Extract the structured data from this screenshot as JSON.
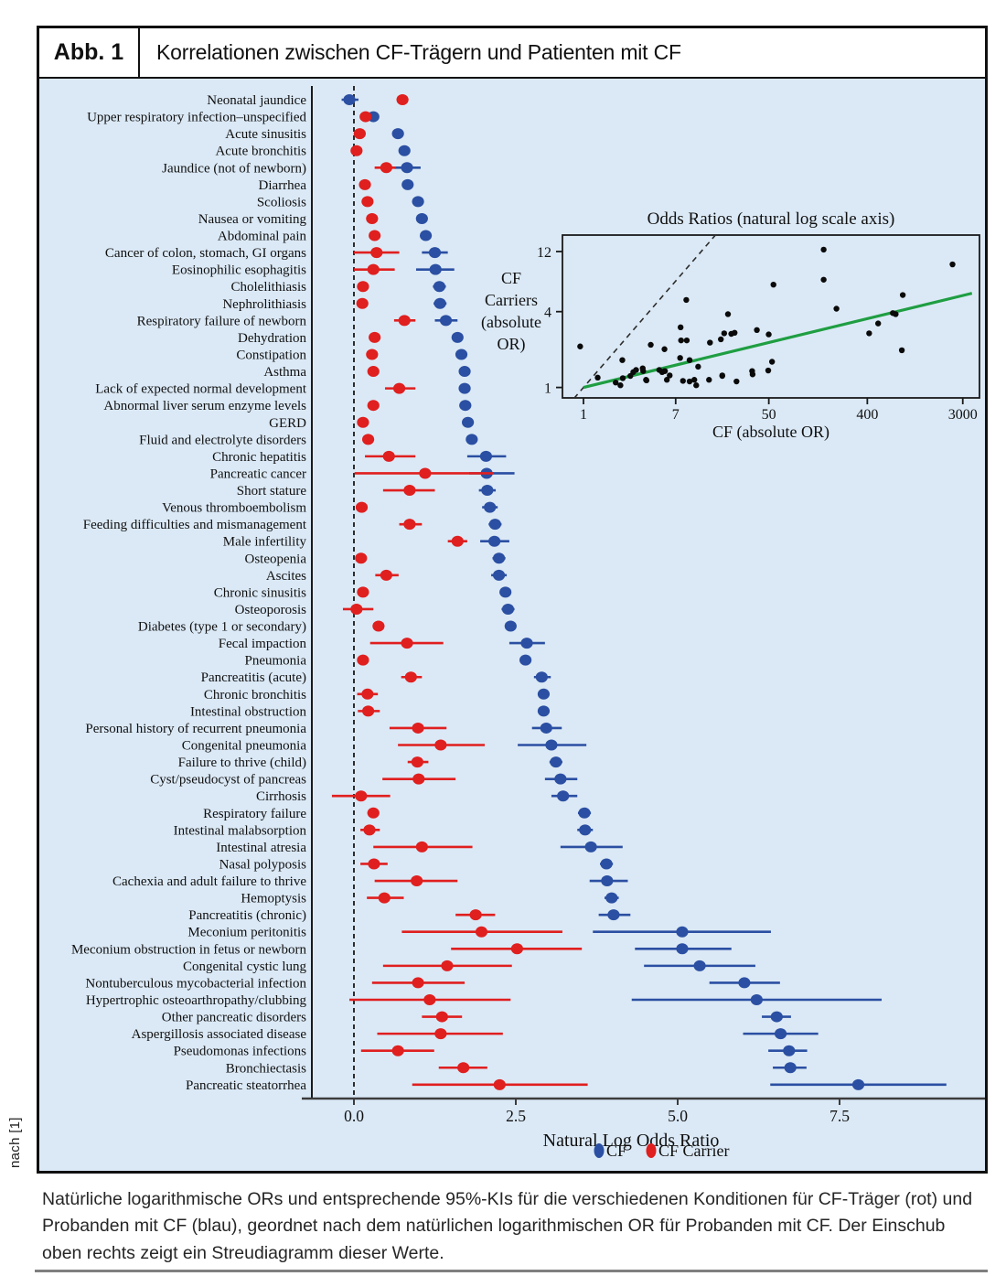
{
  "figure": {
    "label": "Abb. 1",
    "title": "Korrelationen zwischen CF-Trägern und Patienten mit CF",
    "source_note": "nach [1]",
    "caption": "Natürliche logarithmische ORs und entsprechende 95%-KIs für die verschiedenen Konditionen für CF-Träger (rot) und Probanden mit CF (blau), geordnet nach dem natürlichen logarithmischen OR für Probanden mit CF. Der Einschub oben rechts zeigt ein Streudiagramm dieser Werte."
  },
  "colors": {
    "cf": "#2b4fa2",
    "carrier": "#e01f1f",
    "fit_line": "#1f9e42",
    "axis": "#333333",
    "background": "#dbe9f6"
  },
  "chart_data": {
    "type": "forest",
    "xlabel": "Natural Log Odds Ratio",
    "x_ticks": [
      {
        "v": 0,
        "label": "0.0"
      },
      {
        "v": 2.5,
        "label": "2.5"
      },
      {
        "v": 5,
        "label": "5.0"
      },
      {
        "v": 7.5,
        "label": "7.5"
      }
    ],
    "xlim": [
      -0.7,
      9.8
    ],
    "zero_line": 0,
    "legend": [
      {
        "series": "cf",
        "label": "CF"
      },
      {
        "series": "carrier",
        "label": "CF Carrier"
      }
    ],
    "rows": [
      {
        "label": "Neonatal jaundice",
        "cf": -0.07,
        "cf_ci": [
          -0.19,
          0.07
        ],
        "carrier": 0.75,
        "carrier_ci": [
          0.67,
          0.83
        ]
      },
      {
        "label": "Upper respiratory infection–unspecified",
        "cf": 0.3,
        "cf_ci": [
          0.21,
          0.38
        ],
        "carrier": 0.18,
        "carrier_ci": [
          0.12,
          0.24
        ]
      },
      {
        "label": "Acute sinusitis",
        "cf": 0.68,
        "cf_ci": [
          0.6,
          0.76
        ],
        "carrier": 0.09,
        "carrier_ci": [
          0.04,
          0.14
        ]
      },
      {
        "label": "Acute bronchitis",
        "cf": 0.78,
        "cf_ci": [
          0.71,
          0.85
        ],
        "carrier": 0.04,
        "carrier_ci": [
          0.0,
          0.09
        ]
      },
      {
        "label": "Jaundice (not of newborn)",
        "cf": 0.82,
        "cf_ci": [
          0.63,
          1.03
        ],
        "carrier": 0.5,
        "carrier_ci": [
          0.32,
          0.65
        ]
      },
      {
        "label": "Diarrhea",
        "cf": 0.83,
        "cf_ci": [
          0.76,
          0.9
        ],
        "carrier": 0.17,
        "carrier_ci": [
          0.12,
          0.22
        ]
      },
      {
        "label": "Scoliosis",
        "cf": 0.99,
        "cf_ci": [
          0.91,
          1.07
        ],
        "carrier": 0.21,
        "carrier_ci": [
          0.14,
          0.28
        ]
      },
      {
        "label": "Nausea or vomiting",
        "cf": 1.05,
        "cf_ci": [
          0.98,
          1.12
        ],
        "carrier": 0.28,
        "carrier_ci": [
          0.23,
          0.33
        ]
      },
      {
        "label": "Abdominal pain",
        "cf": 1.11,
        "cf_ci": [
          1.04,
          1.18
        ],
        "carrier": 0.32,
        "carrier_ci": [
          0.27,
          0.37
        ]
      },
      {
        "label": "Cancer of colon, stomach, GI organs",
        "cf": 1.25,
        "cf_ci": [
          1.05,
          1.45
        ],
        "carrier": 0.35,
        "carrier_ci": [
          0.0,
          0.7
        ]
      },
      {
        "label": "Eosinophilic esophagitis",
        "cf": 1.26,
        "cf_ci": [
          0.96,
          1.55
        ],
        "carrier": 0.3,
        "carrier_ci": [
          0.0,
          0.63
        ]
      },
      {
        "label": "Cholelithiasis",
        "cf": 1.32,
        "cf_ci": [
          1.22,
          1.42
        ],
        "carrier": 0.14,
        "carrier_ci": [
          0.08,
          0.2
        ]
      },
      {
        "label": "Nephrolithiasis",
        "cf": 1.33,
        "cf_ci": [
          1.23,
          1.43
        ],
        "carrier": 0.13,
        "carrier_ci": [
          0.07,
          0.19
        ]
      },
      {
        "label": "Respiratory failure of newborn",
        "cf": 1.42,
        "cf_ci": [
          1.25,
          1.6
        ],
        "carrier": 0.78,
        "carrier_ci": [
          0.62,
          0.95
        ]
      },
      {
        "label": "Dehydration",
        "cf": 1.6,
        "cf_ci": [
          1.52,
          1.68
        ],
        "carrier": 0.32,
        "carrier_ci": [
          0.26,
          0.38
        ]
      },
      {
        "label": "Constipation",
        "cf": 1.66,
        "cf_ci": [
          1.59,
          1.73
        ],
        "carrier": 0.28,
        "carrier_ci": [
          0.23,
          0.33
        ]
      },
      {
        "label": "Asthma",
        "cf": 1.71,
        "cf_ci": [
          1.64,
          1.78
        ],
        "carrier": 0.3,
        "carrier_ci": [
          0.25,
          0.35
        ]
      },
      {
        "label": "Lack of expected normal development",
        "cf": 1.71,
        "cf_ci": [
          1.62,
          1.8
        ],
        "carrier": 0.7,
        "carrier_ci": [
          0.48,
          0.95
        ]
      },
      {
        "label": "Abnormal liver serum enzyme levels",
        "cf": 1.72,
        "cf_ci": [
          1.63,
          1.81
        ],
        "carrier": 0.3,
        "carrier_ci": [
          0.22,
          0.38
        ]
      },
      {
        "label": "GERD",
        "cf": 1.76,
        "cf_ci": [
          1.69,
          1.83
        ],
        "carrier": 0.14,
        "carrier_ci": [
          0.09,
          0.19
        ]
      },
      {
        "label": "Fluid and electrolyte disorders",
        "cf": 1.82,
        "cf_ci": [
          1.74,
          1.9
        ],
        "carrier": 0.22,
        "carrier_ci": [
          0.16,
          0.28
        ]
      },
      {
        "label": "Chronic hepatitis",
        "cf": 2.04,
        "cf_ci": [
          1.75,
          2.35
        ],
        "carrier": 0.54,
        "carrier_ci": [
          0.17,
          0.95
        ]
      },
      {
        "label": "Pancreatic cancer",
        "cf": 2.05,
        "cf_ci": [
          1.78,
          2.48
        ],
        "carrier": 1.1,
        "carrier_ci": [
          0.01,
          2.16
        ]
      },
      {
        "label": "Short stature",
        "cf": 2.06,
        "cf_ci": [
          1.93,
          2.19
        ],
        "carrier": 0.86,
        "carrier_ci": [
          0.45,
          1.25
        ]
      },
      {
        "label": "Venous thromboembolism",
        "cf": 2.1,
        "cf_ci": [
          1.98,
          2.22
        ],
        "carrier": 0.12,
        "carrier_ci": [
          0.05,
          0.19
        ]
      },
      {
        "label": "Feeding difficulties and mismanagement",
        "cf": 2.18,
        "cf_ci": [
          2.08,
          2.28
        ],
        "carrier": 0.86,
        "carrier_ci": [
          0.7,
          1.05
        ]
      },
      {
        "label": "Male infertility",
        "cf": 2.17,
        "cf_ci": [
          1.95,
          2.4
        ],
        "carrier": 1.6,
        "carrier_ci": [
          1.45,
          1.75
        ]
      },
      {
        "label": "Osteopenia",
        "cf": 2.24,
        "cf_ci": [
          2.14,
          2.34
        ],
        "carrier": 0.11,
        "carrier_ci": [
          0.04,
          0.18
        ]
      },
      {
        "label": "Ascites",
        "cf": 2.24,
        "cf_ci": [
          2.12,
          2.36
        ],
        "carrier": 0.5,
        "carrier_ci": [
          0.33,
          0.69
        ]
      },
      {
        "label": "Chronic sinusitis",
        "cf": 2.34,
        "cf_ci": [
          2.26,
          2.42
        ],
        "carrier": 0.14,
        "carrier_ci": [
          0.08,
          0.2
        ]
      },
      {
        "label": "Osteoporosis",
        "cf": 2.38,
        "cf_ci": [
          2.28,
          2.48
        ],
        "carrier": 0.04,
        "carrier_ci": [
          -0.17,
          0.3
        ]
      },
      {
        "label": "Diabetes (type 1 or secondary)",
        "cf": 2.42,
        "cf_ci": [
          2.34,
          2.5
        ],
        "carrier": 0.38,
        "carrier_ci": [
          0.31,
          0.45
        ]
      },
      {
        "label": "Fecal impaction",
        "cf": 2.67,
        "cf_ci": [
          2.4,
          2.95
        ],
        "carrier": 0.82,
        "carrier_ci": [
          0.25,
          1.38
        ]
      },
      {
        "label": "Pneumonia",
        "cf": 2.65,
        "cf_ci": [
          2.57,
          2.73
        ],
        "carrier": 0.14,
        "carrier_ci": [
          0.08,
          0.2
        ]
      },
      {
        "label": "Pancreatitis (acute)",
        "cf": 2.9,
        "cf_ci": [
          2.78,
          3.04
        ],
        "carrier": 0.88,
        "carrier_ci": [
          0.73,
          1.05
        ]
      },
      {
        "label": "Chronic bronchitis",
        "cf": 2.93,
        "cf_ci": [
          2.85,
          3.01
        ],
        "carrier": 0.21,
        "carrier_ci": [
          0.05,
          0.37
        ]
      },
      {
        "label": "Intestinal obstruction",
        "cf": 2.93,
        "cf_ci": [
          2.84,
          3.02
        ],
        "carrier": 0.22,
        "carrier_ci": [
          0.06,
          0.4
        ]
      },
      {
        "label": "Personal history of recurrent pneumonia",
        "cf": 2.97,
        "cf_ci": [
          2.75,
          3.21
        ],
        "carrier": 0.99,
        "carrier_ci": [
          0.55,
          1.43
        ]
      },
      {
        "label": "Congenital pneumonia",
        "cf": 3.05,
        "cf_ci": [
          2.53,
          3.59
        ],
        "carrier": 1.34,
        "carrier_ci": [
          0.68,
          2.02
        ]
      },
      {
        "label": "Failure to thrive (child)",
        "cf": 3.12,
        "cf_ci": [
          3.02,
          3.22
        ],
        "carrier": 0.98,
        "carrier_ci": [
          0.83,
          1.15
        ]
      },
      {
        "label": "Cyst/pseudocyst of pancreas",
        "cf": 3.19,
        "cf_ci": [
          2.95,
          3.45
        ],
        "carrier": 1.0,
        "carrier_ci": [
          0.44,
          1.57
        ]
      },
      {
        "label": "Cirrhosis",
        "cf": 3.23,
        "cf_ci": [
          3.05,
          3.45
        ],
        "carrier": 0.11,
        "carrier_ci": [
          -0.34,
          0.56
        ]
      },
      {
        "label": "Respiratory failure",
        "cf": 3.56,
        "cf_ci": [
          3.46,
          3.66
        ],
        "carrier": 0.3,
        "carrier_ci": [
          0.21,
          0.39
        ]
      },
      {
        "label": "Intestinal malabsorption",
        "cf": 3.57,
        "cf_ci": [
          3.45,
          3.69
        ],
        "carrier": 0.24,
        "carrier_ci": [
          0.1,
          0.4
        ]
      },
      {
        "label": "Intestinal atresia",
        "cf": 3.66,
        "cf_ci": [
          3.19,
          4.15
        ],
        "carrier": 1.05,
        "carrier_ci": [
          0.3,
          1.83
        ]
      },
      {
        "label": "Nasal polyposis",
        "cf": 3.9,
        "cf_ci": [
          3.8,
          4.0
        ],
        "carrier": 0.31,
        "carrier_ci": [
          0.1,
          0.52
        ]
      },
      {
        "label": "Cachexia and adult failure to thrive",
        "cf": 3.91,
        "cf_ci": [
          3.64,
          4.23
        ],
        "carrier": 0.97,
        "carrier_ci": [
          0.32,
          1.6
        ]
      },
      {
        "label": "Hemoptysis",
        "cf": 3.98,
        "cf_ci": [
          3.87,
          4.09
        ],
        "carrier": 0.47,
        "carrier_ci": [
          0.2,
          0.77
        ]
      },
      {
        "label": "Pancreatitis (chronic)",
        "cf": 4.01,
        "cf_ci": [
          3.78,
          4.27
        ],
        "carrier": 1.88,
        "carrier_ci": [
          1.57,
          2.18
        ]
      },
      {
        "label": "Meconium peritonitis",
        "cf": 5.07,
        "cf_ci": [
          3.69,
          6.44
        ],
        "carrier": 1.97,
        "carrier_ci": [
          0.74,
          3.22
        ]
      },
      {
        "label": "Meconium obstruction in fetus or newborn",
        "cf": 5.07,
        "cf_ci": [
          4.34,
          5.83
        ],
        "carrier": 2.52,
        "carrier_ci": [
          1.5,
          3.52
        ]
      },
      {
        "label": "Congenital cystic lung",
        "cf": 5.34,
        "cf_ci": [
          4.48,
          6.2
        ],
        "carrier": 1.44,
        "carrier_ci": [
          0.45,
          2.44
        ]
      },
      {
        "label": "Nontuberculous mycobacterial infection",
        "cf": 6.03,
        "cf_ci": [
          5.49,
          6.58
        ],
        "carrier": 0.99,
        "carrier_ci": [
          0.28,
          1.71
        ]
      },
      {
        "label": "Hypertrophic osteoarthropathy/clubbing",
        "cf": 6.22,
        "cf_ci": [
          4.29,
          8.15
        ],
        "carrier": 1.17,
        "carrier_ci": [
          -0.07,
          2.42
        ]
      },
      {
        "label": "Other pancreatic disorders",
        "cf": 6.53,
        "cf_ci": [
          6.3,
          6.75
        ],
        "carrier": 1.36,
        "carrier_ci": [
          1.05,
          1.67
        ]
      },
      {
        "label": "Aspergillosis associated disease",
        "cf": 6.59,
        "cf_ci": [
          6.01,
          7.17
        ],
        "carrier": 1.34,
        "carrier_ci": [
          0.36,
          2.3
        ]
      },
      {
        "label": "Pseudomonas infections",
        "cf": 6.72,
        "cf_ci": [
          6.4,
          7.0
        ],
        "carrier": 0.68,
        "carrier_ci": [
          0.11,
          1.24
        ]
      },
      {
        "label": "Bronchiectasis",
        "cf": 6.74,
        "cf_ci": [
          6.47,
          6.99
        ],
        "carrier": 1.69,
        "carrier_ci": [
          1.31,
          2.06
        ]
      },
      {
        "label": "Pancreatic steatorrhea",
        "cf": 7.79,
        "cf_ci": [
          6.43,
          9.15
        ],
        "carrier": 2.25,
        "carrier_ci": [
          0.9,
          3.61
        ]
      }
    ],
    "inset": {
      "type": "scatter",
      "title": "Odds Ratios (natural log scale axis)",
      "xlabel": "CF (absolute OR)",
      "ylabel_lines": [
        "CF",
        "Carriers",
        "(absolute",
        "OR)"
      ],
      "x_ticks": [
        {
          "v": 1,
          "label": "1"
        },
        {
          "v": 7,
          "label": "7"
        },
        {
          "v": 50,
          "label": "50"
        },
        {
          "v": 400,
          "label": "400"
        },
        {
          "v": 3000,
          "label": "3000"
        }
      ],
      "y_ticks": [
        {
          "v": 1,
          "label": "1"
        },
        {
          "v": 4,
          "label": "4"
        },
        {
          "v": 12,
          "label": "12"
        }
      ],
      "scale": "log-log",
      "identity_line": true,
      "fit_line_slope_lnln": 0.21,
      "points_source": "exp(cf) vs exp(carrier) for every row"
    }
  }
}
